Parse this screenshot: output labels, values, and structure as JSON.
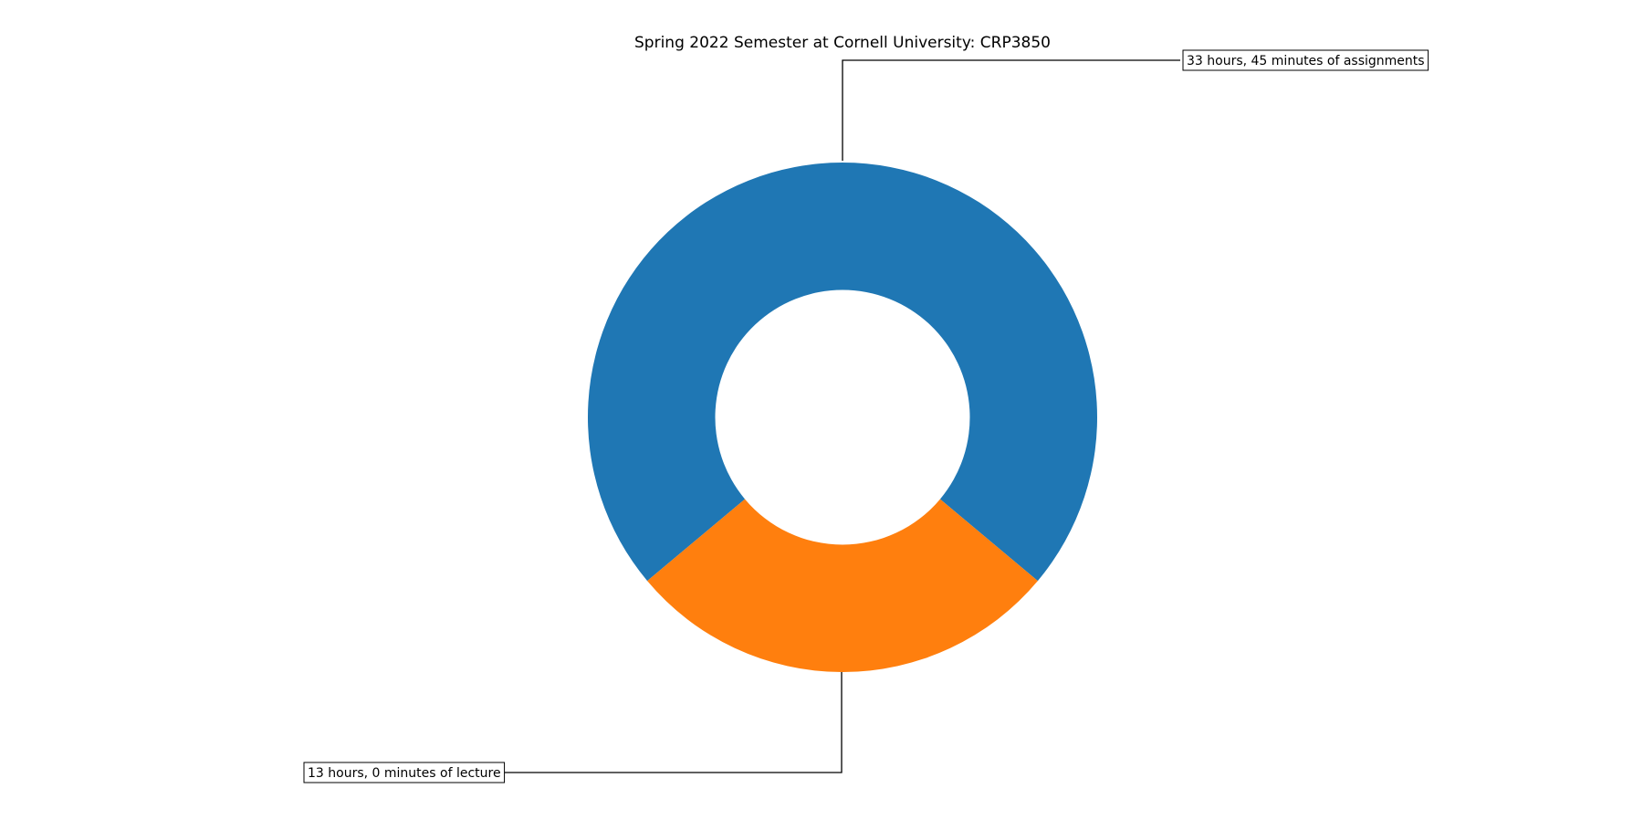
{
  "chart_data": {
    "type": "pie",
    "variant": "donut",
    "title": "Spring 2022 Semester at Cornell University: CRP3850",
    "slices": [
      {
        "label": "33 hours, 45 minutes of assignments",
        "value": 2025,
        "unit": "minutes",
        "color": "#1f77b4"
      },
      {
        "label": "13 hours, 0 minutes of lecture",
        "value": 780,
        "unit": "minutes",
        "color": "#ff7f0e"
      }
    ],
    "start_angle_deg": -90,
    "direction": "clockwise",
    "inner_radius_fraction": 0.5,
    "legend": "none",
    "grid": false
  }
}
